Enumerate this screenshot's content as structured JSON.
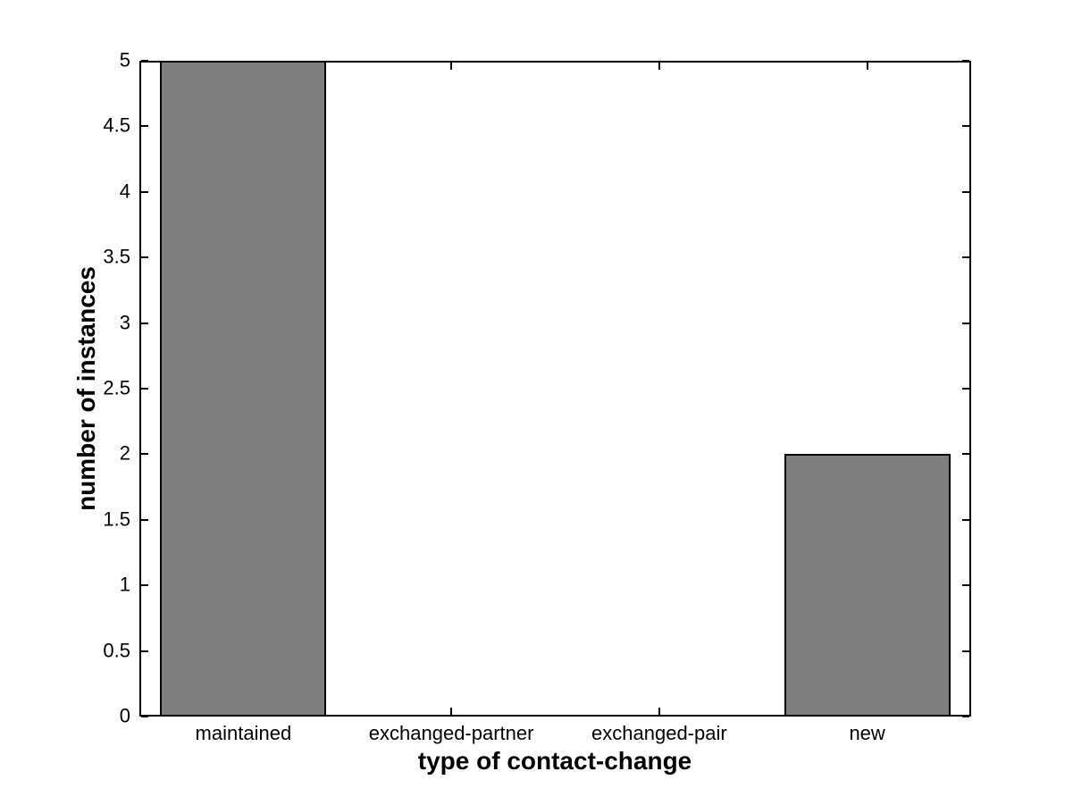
{
  "figure": {
    "background": "#ffffff",
    "axis_color": "#000000",
    "bar_fill": "#7f7f7f",
    "bar_edge": "#000000"
  },
  "chart_data": {
    "type": "bar",
    "title": "",
    "xlabel": "type of contact-change",
    "ylabel": "number of instances",
    "categories": [
      "maintained",
      "exchanged-partner",
      "exchanged-pair",
      "new"
    ],
    "values": [
      5,
      0,
      0,
      2
    ],
    "ylim": [
      0,
      5
    ],
    "yticks": [
      0,
      0.5,
      1,
      1.5,
      2,
      2.5,
      3,
      3.5,
      4,
      4.5,
      5
    ],
    "ytick_labels": [
      "0",
      "0.5",
      "1",
      "1.5",
      "2",
      "2.5",
      "3",
      "3.5",
      "4",
      "4.5",
      "5"
    ],
    "bar_width_fraction": 0.8,
    "grid": false,
    "legend": null,
    "ticks_mirrored": true
  }
}
